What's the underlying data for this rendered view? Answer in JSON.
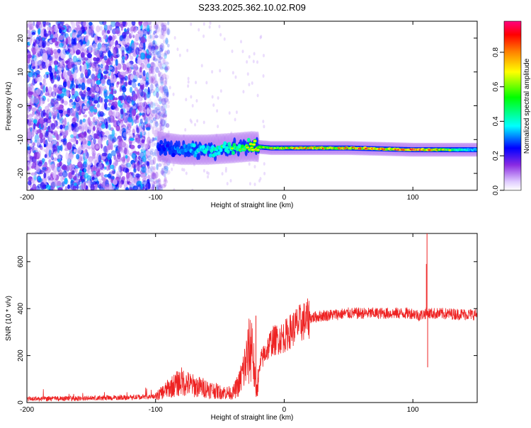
{
  "title": "S233.2025.362.10.02.R09",
  "chart_data": [
    {
      "type": "heatmap",
      "title": "S233.2025.362.10.02.R09",
      "xlabel": "Height of straight line (km)",
      "ylabel": "Frequency (Hz)",
      "xlim": [
        -200,
        150
      ],
      "ylim": [
        -25,
        25
      ],
      "xticks": [
        -200,
        -100,
        0,
        100
      ],
      "yticks": [
        -20,
        -10,
        0,
        10,
        20
      ],
      "colorbar": {
        "label": "Normalized spectral amplitude",
        "range": [
          0,
          0.98
        ],
        "ticks": [
          0.0,
          0.2,
          0.4,
          0.6,
          0.8
        ],
        "colormap": [
          "#ffffff",
          "#e0ccff",
          "#8a2be2",
          "#0000ff",
          "#00ffff",
          "#00ff00",
          "#ffff00",
          "#ff8000",
          "#ff0000",
          "#ff007f"
        ]
      },
      "ridge": {
        "frequency": [
          [
            -98,
            -12
          ],
          [
            -90,
            -12.5
          ],
          [
            -80,
            -13
          ],
          [
            -60,
            -13
          ],
          [
            -40,
            -12.5
          ],
          [
            -25,
            -12
          ],
          [
            -10,
            -12.5
          ],
          [
            0,
            -12.5
          ],
          [
            50,
            -12.5
          ],
          [
            100,
            -13
          ],
          [
            110,
            -13
          ],
          [
            150,
            -13
          ]
        ],
        "peak_amplitude": [
          [
            -98,
            0.35
          ],
          [
            -60,
            0.55
          ],
          [
            -30,
            0.7
          ],
          [
            0,
            0.85
          ],
          [
            50,
            0.95
          ],
          [
            110,
            0.98
          ],
          [
            150,
            0.45
          ]
        ]
      },
      "noise": {
        "dense_region": [
          -200,
          -95
        ],
        "amplitude_range": [
          0.05,
          0.35
        ]
      }
    },
    {
      "type": "line",
      "xlabel": "Height of straight line (km)",
      "ylabel": "SNR (10 * v/v)",
      "xlim": [
        -200,
        150
      ],
      "ylim": [
        0,
        720
      ],
      "xticks": [
        -200,
        -100,
        0,
        100
      ],
      "yticks": [
        0,
        200,
        400,
        600
      ],
      "color": "#ee2222",
      "envelope": [
        [
          -200,
          15
        ],
        [
          -150,
          18
        ],
        [
          -100,
          25
        ],
        [
          -90,
          60
        ],
        [
          -80,
          90
        ],
        [
          -70,
          70
        ],
        [
          -60,
          60
        ],
        [
          -50,
          45
        ],
        [
          -40,
          40
        ],
        [
          -35,
          80
        ],
        [
          -28,
          200
        ],
        [
          -25,
          260
        ],
        [
          -22,
          40
        ],
        [
          -18,
          180
        ],
        [
          -10,
          260
        ],
        [
          0,
          280
        ],
        [
          10,
          330
        ],
        [
          20,
          360
        ],
        [
          30,
          370
        ],
        [
          50,
          380
        ],
        [
          80,
          380
        ],
        [
          100,
          380
        ],
        [
          105,
          370
        ],
        [
          110,
          380
        ],
        [
          150,
          375
        ]
      ],
      "spikes": [
        [
          -22,
          370
        ],
        [
          111,
          720
        ],
        [
          111.5,
          150
        ],
        [
          110.5,
          590
        ]
      ]
    }
  ]
}
